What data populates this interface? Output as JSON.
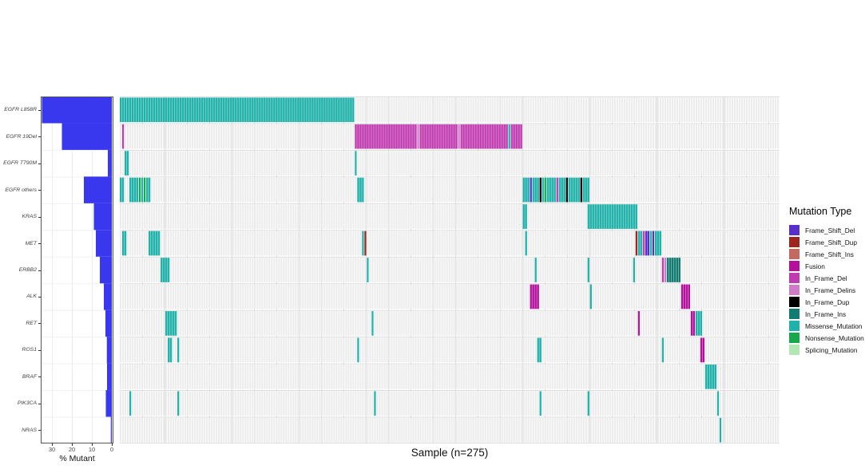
{
  "figure": {
    "x_axis_title": "Sample (n=275)",
    "bar_axis_label": "% Mutant",
    "legend_title": "Mutation Type",
    "bar_axis_ticks": [
      30,
      20,
      10,
      0
    ]
  },
  "chart_data": {
    "type": "heatmap",
    "subtype": "oncoprint",
    "title": "",
    "xlabel": "Sample (n=275)",
    "bar_xlabel": "% Mutant",
    "n_samples": 275,
    "bar_color": "#3A38EE",
    "bar_axis_range": [
      35,
      0
    ],
    "background_cell_color": "#ECECEC",
    "grid_color": "#DCDCDC",
    "legend_position": "right",
    "genes": [
      "EGFR L858R",
      "EGFR 19Del",
      "EGFR T790M",
      "EGFR others",
      "KRAS",
      "MET",
      "ERBB2",
      "ALK",
      "RET",
      "ROS1",
      "BRAF",
      "PIK3CA",
      "NRAS"
    ],
    "pct_mutant": [
      35,
      25,
      2,
      14,
      9,
      8,
      6,
      4,
      3.2,
      2.5,
      2.4,
      3,
      0.5
    ],
    "mutation_types": [
      {
        "name": "Frame_Shift_Del",
        "color": "#5630C8"
      },
      {
        "name": "Frame_Shift_Dup",
        "color": "#9E241E"
      },
      {
        "name": "Frame_Shift_Ins",
        "color": "#C4695F"
      },
      {
        "name": "Fusion",
        "color": "#B5109C"
      },
      {
        "name": "In_Frame_Del",
        "color": "#C13BB0"
      },
      {
        "name": "In_Frame_Delins",
        "color": "#D07BC8"
      },
      {
        "name": "In_Frame_Dup",
        "color": "#000000"
      },
      {
        "name": "In_Frame_Ins",
        "color": "#127B72"
      },
      {
        "name": "Missense_Mutation",
        "color": "#20B2AA"
      },
      {
        "name": "Nonsense_Mutation",
        "color": "#18A84C"
      },
      {
        "name": "Splicing_Mutation",
        "color": "#B2E6B2"
      }
    ],
    "cells": {
      "EGFR L858R": [
        [
          1,
          98,
          "Missense_Mutation"
        ]
      ],
      "EGFR 19Del": [
        [
          2,
          2,
          "In_Frame_Del"
        ],
        [
          99,
          124,
          "In_Frame_Del"
        ],
        [
          125,
          125,
          "In_Frame_Delins"
        ],
        [
          126,
          141,
          "In_Frame_Del"
        ],
        [
          142,
          142,
          "In_Frame_Delins"
        ],
        [
          143,
          162,
          "In_Frame_Del"
        ],
        [
          163,
          163,
          "Missense_Mutation"
        ],
        [
          164,
          168,
          "In_Frame_Del"
        ]
      ],
      "EGFR T790M": [
        [
          3,
          4,
          "Missense_Mutation"
        ],
        [
          99,
          99,
          "Missense_Mutation"
        ]
      ],
      "EGFR others": [
        [
          1,
          2,
          "Missense_Mutation"
        ],
        [
          5,
          8,
          "Missense_Mutation"
        ],
        [
          9,
          9,
          "Nonsense_Mutation"
        ],
        [
          10,
          10,
          "Missense_Mutation"
        ],
        [
          11,
          11,
          "Nonsense_Mutation"
        ],
        [
          12,
          13,
          "Missense_Mutation"
        ],
        [
          100,
          102,
          "Missense_Mutation"
        ],
        [
          169,
          171,
          "Missense_Mutation"
        ],
        [
          172,
          172,
          "Frame_Shift_Del"
        ],
        [
          173,
          175,
          "Missense_Mutation"
        ],
        [
          176,
          176,
          "In_Frame_Dup"
        ],
        [
          177,
          177,
          "Missense_Mutation"
        ],
        [
          178,
          178,
          "Nonsense_Mutation"
        ],
        [
          179,
          182,
          "Missense_Mutation"
        ],
        [
          183,
          183,
          "In_Frame_Del"
        ],
        [
          184,
          186,
          "Missense_Mutation"
        ],
        [
          187,
          187,
          "In_Frame_Dup"
        ],
        [
          188,
          192,
          "Missense_Mutation"
        ],
        [
          193,
          193,
          "In_Frame_Dup"
        ],
        [
          194,
          196,
          "Missense_Mutation"
        ]
      ],
      "KRAS": [
        [
          169,
          170,
          "Missense_Mutation"
        ],
        [
          196,
          216,
          "Missense_Mutation"
        ]
      ],
      "MET": [
        [
          2,
          3,
          "Missense_Mutation"
        ],
        [
          13,
          17,
          "Missense_Mutation"
        ],
        [
          102,
          102,
          "Missense_Mutation"
        ],
        [
          103,
          103,
          "Frame_Shift_Dup"
        ],
        [
          170,
          170,
          "Missense_Mutation"
        ],
        [
          216,
          216,
          "Frame_Shift_Dup"
        ],
        [
          217,
          218,
          "Missense_Mutation"
        ],
        [
          219,
          219,
          "In_Frame_Del"
        ],
        [
          220,
          221,
          "Frame_Shift_Del"
        ],
        [
          222,
          222,
          "Missense_Mutation"
        ],
        [
          223,
          223,
          "Frame_Shift_Del"
        ],
        [
          224,
          226,
          "Missense_Mutation"
        ]
      ],
      "ERBB2": [
        [
          18,
          21,
          "Missense_Mutation"
        ],
        [
          104,
          104,
          "Missense_Mutation"
        ],
        [
          174,
          174,
          "Missense_Mutation"
        ],
        [
          196,
          196,
          "Missense_Mutation"
        ],
        [
          215,
          215,
          "Missense_Mutation"
        ],
        [
          227,
          227,
          "In_Frame_Del"
        ],
        [
          228,
          228,
          "In_Frame_Delins"
        ],
        [
          229,
          234,
          "In_Frame_Ins"
        ]
      ],
      "ALK": [
        [
          172,
          175,
          "Fusion"
        ],
        [
          197,
          197,
          "Missense_Mutation"
        ],
        [
          235,
          238,
          "Fusion"
        ]
      ],
      "RET": [
        [
          20,
          24,
          "Missense_Mutation"
        ],
        [
          106,
          106,
          "Missense_Mutation"
        ],
        [
          217,
          217,
          "Fusion"
        ],
        [
          239,
          240,
          "Fusion"
        ],
        [
          241,
          243,
          "Missense_Mutation"
        ]
      ],
      "ROS1": [
        [
          21,
          22,
          "Missense_Mutation"
        ],
        [
          25,
          25,
          "Missense_Mutation"
        ],
        [
          100,
          100,
          "Missense_Mutation"
        ],
        [
          175,
          176,
          "Missense_Mutation"
        ],
        [
          227,
          227,
          "Missense_Mutation"
        ],
        [
          243,
          244,
          "Fusion"
        ]
      ],
      "BRAF": [
        [
          245,
          249,
          "Missense_Mutation"
        ]
      ],
      "PIK3CA": [
        [
          5,
          5,
          "Missense_Mutation"
        ],
        [
          25,
          25,
          "Missense_Mutation"
        ],
        [
          107,
          107,
          "Missense_Mutation"
        ],
        [
          176,
          176,
          "Missense_Mutation"
        ],
        [
          196,
          196,
          "Missense_Mutation"
        ],
        [
          250,
          250,
          "Missense_Mutation"
        ]
      ],
      "NRAS": [
        [
          251,
          251,
          "Missense_Mutation"
        ]
      ]
    }
  }
}
